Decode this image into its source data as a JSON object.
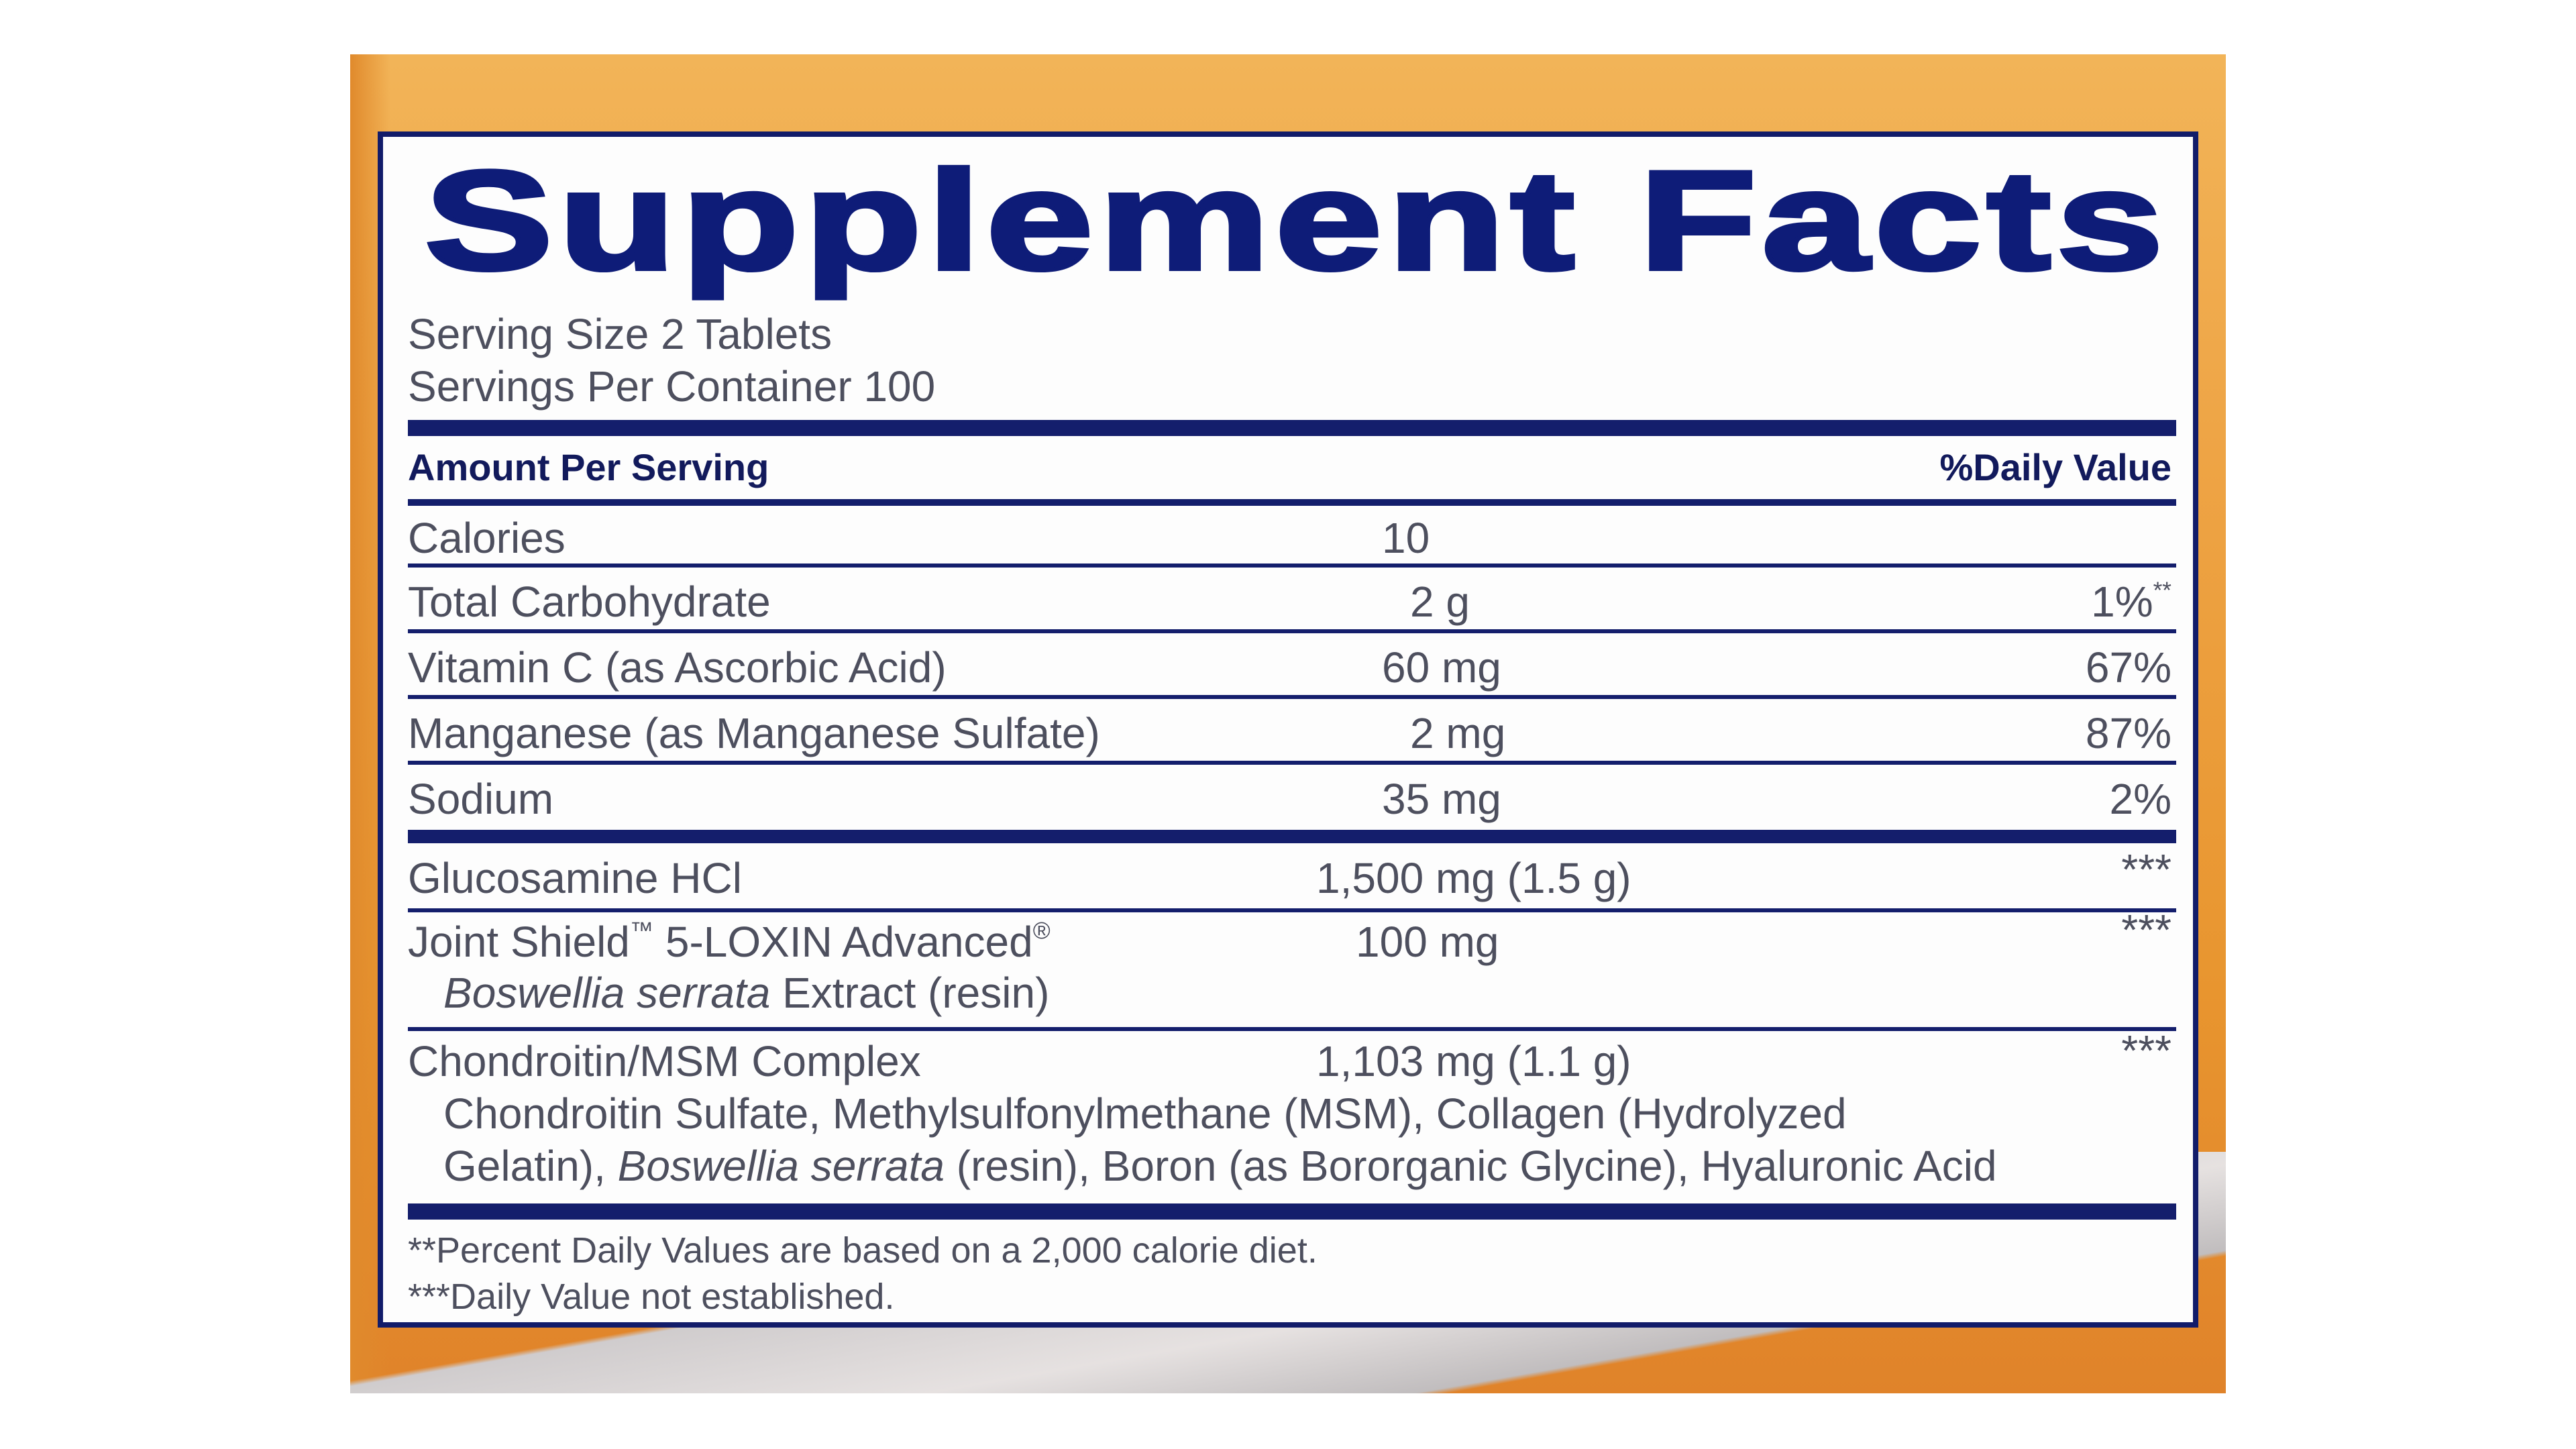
{
  "colors": {
    "navy": "#121c6a",
    "orange": "#eea445",
    "text": "#4d4f5e"
  },
  "title": "Supplement Facts",
  "serving_size": "Serving Size 2 Tablets",
  "servings_per_container": "Servings Per Container 100",
  "header": {
    "amount": "Amount Per Serving",
    "daily_value": "%Daily Value"
  },
  "rows": [
    {
      "name": "Calories",
      "amount": "10",
      "dv": ""
    },
    {
      "name": "Total Carbohydrate",
      "amount": "2 g",
      "dv": "1%",
      "dv_mark": "**"
    },
    {
      "name": "Vitamin C (as Ascorbic Acid)",
      "amount": "60 mg",
      "dv": "67%"
    },
    {
      "name": "Manganese (as Manganese Sulfate)",
      "amount": "2 mg",
      "dv": "87%"
    },
    {
      "name": "Sodium",
      "amount": "35 mg",
      "dv": "2%"
    },
    {
      "name": "Glucosamine HCl",
      "amount": "1,500 mg (1.5 g)",
      "dv": "***"
    },
    {
      "name": "Joint Shield",
      "tm": "™",
      "name2": " 5-LOXIN Advanced",
      "reg": "®",
      "sub_italic": "Boswellia serrata",
      "sub_rest": " Extract (resin)",
      "amount": "100 mg",
      "dv": "***"
    },
    {
      "name": "Chondroitin/MSM Complex",
      "amount": "1,103 mg (1.1 g)",
      "dv": "***",
      "sub_line1": "Chondroitin Sulfate, Methylsulfonylmethane (MSM), Collagen (Hydrolyzed",
      "sub_line2a": "Gelatin), ",
      "sub_line2_italic": "Boswellia serrata",
      "sub_line2b": " (resin), Boron (as Bororganic Glycine), Hyaluronic Acid"
    }
  ],
  "footnotes": [
    "**Percent Daily Values are based on a 2,000 calorie diet.",
    "***Daily Value not established."
  ]
}
